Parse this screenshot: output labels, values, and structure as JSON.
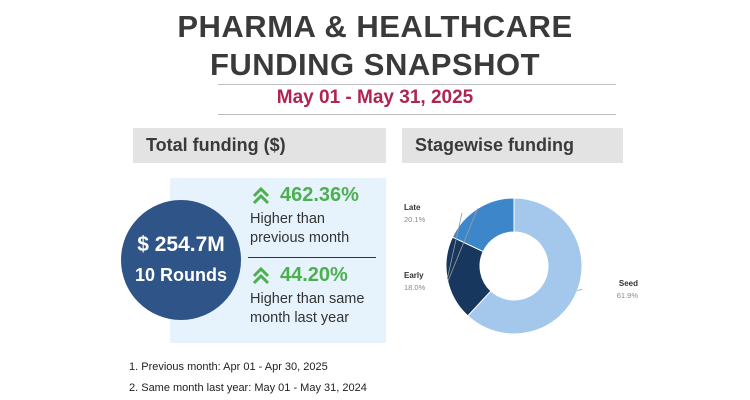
{
  "header": {
    "title_line1": "PHARMA & HEALTHCARE",
    "title_line2": "FUNDING SNAPSHOT",
    "date_range": "May 01 - May 31, 2025"
  },
  "total_funding": {
    "header": "Total funding ($)",
    "amount": "$ 254.7M",
    "rounds": "10 Rounds",
    "mom_change": "462.36%",
    "mom_desc_line1": "Higher than",
    "mom_desc_line2": "previous month",
    "yoy_change": "44.20%",
    "yoy_desc_line1": "Higher than same",
    "yoy_desc_line2": "month last year"
  },
  "stagewise": {
    "header": "Stagewise funding"
  },
  "footnotes": {
    "note1": "1. Previous month: Apr 01 - Apr 30, 2025",
    "note2": "2. Same month last year: May 01 - May 31, 2024"
  },
  "colors": {
    "circle": "#2f5487",
    "growth": "#4caf50",
    "date": "#b0254f",
    "seed": "#a4c8ec",
    "early": "#3d86c9",
    "late": "#17375e"
  },
  "chart_data": {
    "type": "pie",
    "title": "Stagewise funding",
    "categories": [
      "Seed",
      "Early",
      "Late"
    ],
    "values": [
      61.9,
      18.0,
      20.1
    ],
    "value_labels": [
      "61.9%",
      "18.0%",
      "20.1%"
    ],
    "colors": [
      "#a4c8ec",
      "#3d86c9",
      "#17375e"
    ],
    "donut": true
  }
}
